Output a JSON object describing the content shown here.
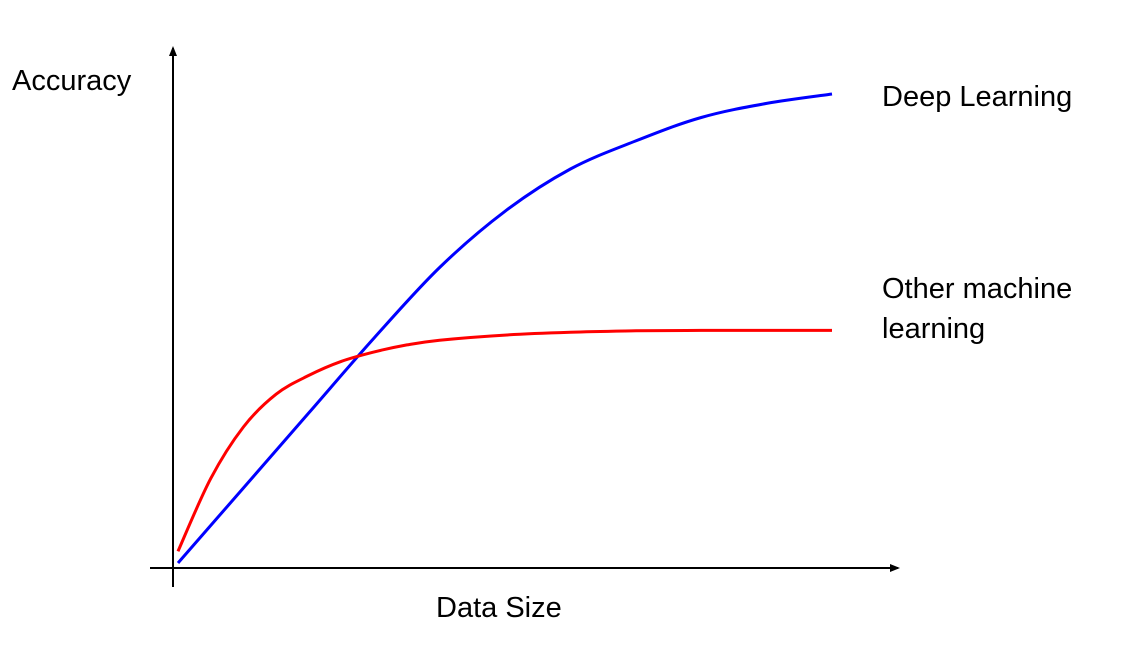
{
  "chart_data": {
    "type": "line",
    "title": "",
    "xlabel": "Data Size",
    "ylabel": "Accuracy",
    "grid": false,
    "axis_ticks": false,
    "xlim": [
      0,
      100
    ],
    "ylim": [
      0,
      100
    ],
    "series": [
      {
        "name": "Deep Learning",
        "color": "#0000ff",
        "x": [
          0,
          10,
          20,
          30,
          40,
          50,
          60,
          70,
          80,
          90,
          100
        ],
        "y": [
          0,
          16,
          32,
          48,
          63,
          75,
          84,
          90,
          95,
          98,
          100
        ]
      },
      {
        "name": "Other machine learning",
        "color": "#ff0000",
        "x": [
          0,
          5,
          10,
          15,
          20,
          25,
          30,
          35,
          40,
          50,
          60,
          70,
          80,
          90,
          100
        ],
        "y": [
          2.5,
          18,
          29,
          36,
          40,
          43,
          45,
          46.5,
          47.5,
          48.6,
          49.2,
          49.5,
          49.6,
          49.6,
          49.6
        ]
      }
    ],
    "legend_lines": {
      "deep": [
        "Deep Learning"
      ],
      "other": [
        "Other machine",
        "learning"
      ]
    }
  }
}
